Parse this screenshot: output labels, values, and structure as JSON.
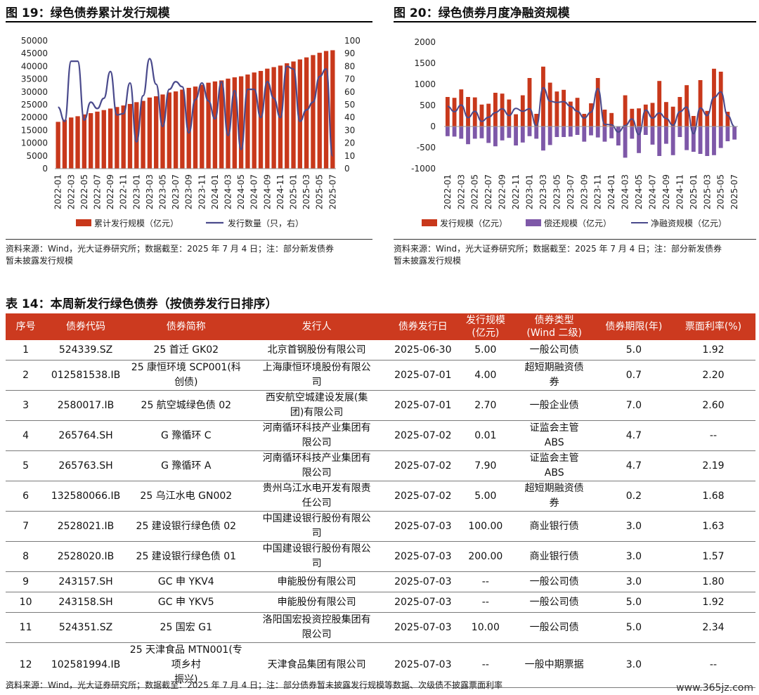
{
  "fig19": {
    "title": "图 19：绿色债券累计发行规模",
    "legend": [
      "累计发行规模（亿元）",
      "发行数量（只，右）"
    ],
    "source_line1": "资料来源：Wind，光大证券研究所；数据截至：2025 年 7 月 4 日；注：部分新发债券",
    "source_line2": "暂未披露发行规模"
  },
  "fig20": {
    "title": "图 20：绿色债券月度净融资规模",
    "legend": [
      "发行规模（亿元）",
      "偿还规模（亿元）",
      "净融资规模（亿元）"
    ],
    "source_line1": "资料来源：Wind，光大证券研究所；数据截至：2025 年 7 月 4 日；注：部分新发债券",
    "source_line2": "暂未披露发行规模"
  },
  "chart_data": [
    {
      "type": "bar",
      "title": "绿色债券累计发行规模",
      "x": [
        "2022-01",
        "2022-02",
        "2022-03",
        "2022-04",
        "2022-05",
        "2022-06",
        "2022-07",
        "2022-08",
        "2022-09",
        "2022-10",
        "2022-11",
        "2022-12",
        "2023-01",
        "2023-02",
        "2023-03",
        "2023-04",
        "2023-05",
        "2023-06",
        "2023-07",
        "2023-08",
        "2023-09",
        "2023-10",
        "2023-11",
        "2023-12",
        "2024-01",
        "2024-02",
        "2024-03",
        "2024-04",
        "2024-05",
        "2024-06",
        "2024-07",
        "2024-08",
        "2024-09",
        "2024-10",
        "2024-11",
        "2024-12",
        "2025-01",
        "2025-02",
        "2025-03",
        "2025-04",
        "2025-05",
        "2025-06",
        "2025-07"
      ],
      "x_tick_labels": [
        "2022-01",
        "2022-03",
        "2022-05",
        "2022-07",
        "2022-09",
        "2022-11",
        "2023-01",
        "2023-03",
        "2023-05",
        "2023-07",
        "2023-09",
        "2023-11",
        "2024-01",
        "2024-03",
        "2024-05",
        "2024-07",
        "2024-09",
        "2024-11",
        "2025-01",
        "2025-03",
        "2025-05",
        "2025-07"
      ],
      "series": [
        {
          "name": "累计发行规模（亿元）",
          "axis": "left",
          "kind": "bar",
          "color": "#c8381b",
          "values": [
            18300,
            19100,
            20000,
            20500,
            21200,
            21700,
            22300,
            22900,
            23500,
            24100,
            24700,
            25300,
            26000,
            26500,
            27800,
            28300,
            29000,
            29800,
            30200,
            30900,
            31600,
            32100,
            32800,
            33600,
            34100,
            34500,
            35200,
            35700,
            36100,
            36800,
            37600,
            38200,
            39100,
            39700,
            40300,
            41200,
            41900,
            42700,
            43500,
            44400,
            45300,
            46000,
            46300
          ]
        },
        {
          "name": "发行数量（只，右）",
          "axis": "right",
          "kind": "line",
          "color": "#4a4a8c",
          "values": [
            48,
            37,
            84,
            84,
            38,
            52,
            47,
            55,
            76,
            42,
            43,
            67,
            21,
            57,
            86,
            66,
            33,
            62,
            68,
            64,
            28,
            54,
            67,
            53,
            39,
            68,
            26,
            61,
            15,
            62,
            62,
            40,
            68,
            55,
            40,
            80,
            78,
            37,
            46,
            52,
            72,
            78,
            10
          ]
        }
      ],
      "ylim_left": [
        0,
        50000
      ],
      "yticks_left": [
        0,
        5000,
        10000,
        15000,
        20000,
        25000,
        30000,
        35000,
        40000,
        45000,
        50000
      ],
      "ylim_right": [
        0,
        100
      ],
      "yticks_right": [
        0,
        10,
        20,
        30,
        40,
        50,
        60,
        70,
        80,
        90,
        100
      ],
      "legend_position": "bottom"
    },
    {
      "type": "bar",
      "title": "绿色债券月度净融资规模",
      "x": [
        "2022-01",
        "2022-02",
        "2022-03",
        "2022-04",
        "2022-05",
        "2022-06",
        "2022-07",
        "2022-08",
        "2022-09",
        "2022-10",
        "2022-11",
        "2022-12",
        "2023-01",
        "2023-02",
        "2023-03",
        "2023-04",
        "2023-05",
        "2023-06",
        "2023-07",
        "2023-08",
        "2023-09",
        "2023-10",
        "2023-11",
        "2023-12",
        "2024-01",
        "2024-02",
        "2024-03",
        "2024-04",
        "2024-05",
        "2024-06",
        "2024-07",
        "2024-08",
        "2024-09",
        "2024-10",
        "2024-11",
        "2024-12",
        "2025-01",
        "2025-02",
        "2025-03",
        "2025-04",
        "2025-05",
        "2025-06",
        "2025-07"
      ],
      "x_tick_labels": [
        "2022-01",
        "2022-03",
        "2022-05",
        "2022-07",
        "2022-09",
        "2022-11",
        "2023-01",
        "2023-03",
        "2023-05",
        "2023-07",
        "2023-09",
        "2023-11",
        "2024-01",
        "2024-03",
        "2024-05",
        "2024-07",
        "2024-09",
        "2024-11",
        "2025-01",
        "2025-03",
        "2025-05",
        "2025-07"
      ],
      "series": [
        {
          "name": "发行规模（亿元）",
          "kind": "bar",
          "color": "#c8381b",
          "values": [
            700,
            680,
            880,
            700,
            690,
            520,
            540,
            800,
            780,
            640,
            290,
            740,
            1150,
            300,
            1420,
            1040,
            830,
            870,
            590,
            680,
            300,
            550,
            1150,
            400,
            320,
            0,
            740,
            420,
            430,
            520,
            560,
            1080,
            580,
            470,
            700,
            980,
            250,
            1100,
            370,
            1370,
            1300,
            350,
            0
          ]
        },
        {
          "name": "偿还规模（亿元）",
          "kind": "bar",
          "color": "#7e58a8",
          "values": [
            -230,
            -240,
            -290,
            -420,
            -290,
            -280,
            -390,
            -470,
            -330,
            -270,
            -450,
            -380,
            -230,
            -290,
            -570,
            -440,
            -250,
            -250,
            -240,
            -200,
            -360,
            -210,
            -260,
            -360,
            -280,
            -450,
            -740,
            -290,
            -630,
            -200,
            -430,
            -700,
            -410,
            -680,
            -250,
            -560,
            -600,
            -650,
            -700,
            -680,
            -510,
            -350,
            -310
          ]
        },
        {
          "name": "净融资规模（亿元）",
          "kind": "line",
          "color": "#4a4a8c",
          "values": [
            480,
            350,
            510,
            210,
            360,
            120,
            220,
            330,
            420,
            260,
            430,
            360,
            420,
            10,
            920,
            600,
            570,
            590,
            480,
            360,
            200,
            340,
            900,
            50,
            40,
            -130,
            20,
            180,
            -190,
            390,
            200,
            320,
            190,
            30,
            350,
            460,
            -170,
            440,
            260,
            690,
            820,
            260,
            0
          ]
        }
      ],
      "ylim": [
        -1000,
        2000
      ],
      "yticks": [
        -1000,
        -500,
        0,
        500,
        1000,
        1500,
        2000
      ],
      "legend_position": "bottom"
    }
  ],
  "table": {
    "title": "表 14：本周新发行绿色债券（按债券发行日排序）",
    "headers": [
      "序号",
      "债券代码",
      "债券简称",
      "发行人",
      "债券发行日",
      "发行规模\n(亿元)",
      "债券类型\n(Wind 二级)",
      "债券期限(年)",
      "票面利率(%)"
    ],
    "rows": [
      [
        "1",
        "524339.SZ",
        "25 首迁 GK02",
        "北京首钢股份有限公司",
        "2025-06-30",
        "5.00",
        "一般公司债",
        "5.0",
        "1.92"
      ],
      [
        "2",
        "012581538.IB",
        "25 康恒环境 SCP001(科创债)",
        "上海康恒环境股份有限公\n司",
        "2025-07-01",
        "4.00",
        "超短期融资债\n券",
        "0.7",
        "2.20"
      ],
      [
        "3",
        "2580017.IB",
        "25 航空城绿色债 02",
        "西安航空城建设发展(集\n团)有限公司",
        "2025-07-01",
        "2.70",
        "一般企业债",
        "7.0",
        "2.60"
      ],
      [
        "4",
        "265764.SH",
        "G 豫循环 C",
        "河南循环科技产业集团有\n限公司",
        "2025-07-02",
        "0.01",
        "证监会主管\nABS",
        "4.7",
        "--"
      ],
      [
        "5",
        "265763.SH",
        "G 豫循环 A",
        "河南循环科技产业集团有\n限公司",
        "2025-07-02",
        "7.90",
        "证监会主管\nABS",
        "4.7",
        "2.19"
      ],
      [
        "6",
        "132580066.IB",
        "25 乌江水电 GN002",
        "贵州乌江水电开发有限责\n任公司",
        "2025-07-02",
        "5.00",
        "超短期融资债\n券",
        "0.2",
        "1.68"
      ],
      [
        "7",
        "2528021.IB",
        "25 建设银行绿色债 02",
        "中国建设银行股份有限公\n司",
        "2025-07-03",
        "100.00",
        "商业银行债",
        "3.0",
        "1.63"
      ],
      [
        "8",
        "2528020.IB",
        "25 建设银行绿色债 01",
        "中国建设银行股份有限公\n司",
        "2025-07-03",
        "200.00",
        "商业银行债",
        "3.0",
        "1.57"
      ],
      [
        "9",
        "243157.SH",
        "GC 申 YKV4",
        "申能股份有限公司",
        "2025-07-03",
        "--",
        "一般公司债",
        "3.0",
        "1.80"
      ],
      [
        "10",
        "243158.SH",
        "GC 申 YKV5",
        "申能股份有限公司",
        "2025-07-03",
        "--",
        "一般公司债",
        "5.0",
        "1.92"
      ],
      [
        "11",
        "524351.SZ",
        "25 国宏 G1",
        "洛阳国宏投资控股集团有\n限公司",
        "2025-07-03",
        "10.00",
        "一般公司债",
        "5.0",
        "2.34"
      ],
      [
        "12",
        "102581994.IB",
        "25 天津食品 MTN001(专项乡村\n振兴)",
        "天津食品集团有限公司",
        "2025-07-03",
        "--",
        "一般中期票据",
        "3.0",
        "--"
      ]
    ],
    "source": "资料来源：Wind，光大证券研究所；数据截至：2025 年 7 月 4 日；注：部分债券暂未披露发行规模等数据、次级债不披露票面利率"
  },
  "watermark": "www.365jz.com"
}
